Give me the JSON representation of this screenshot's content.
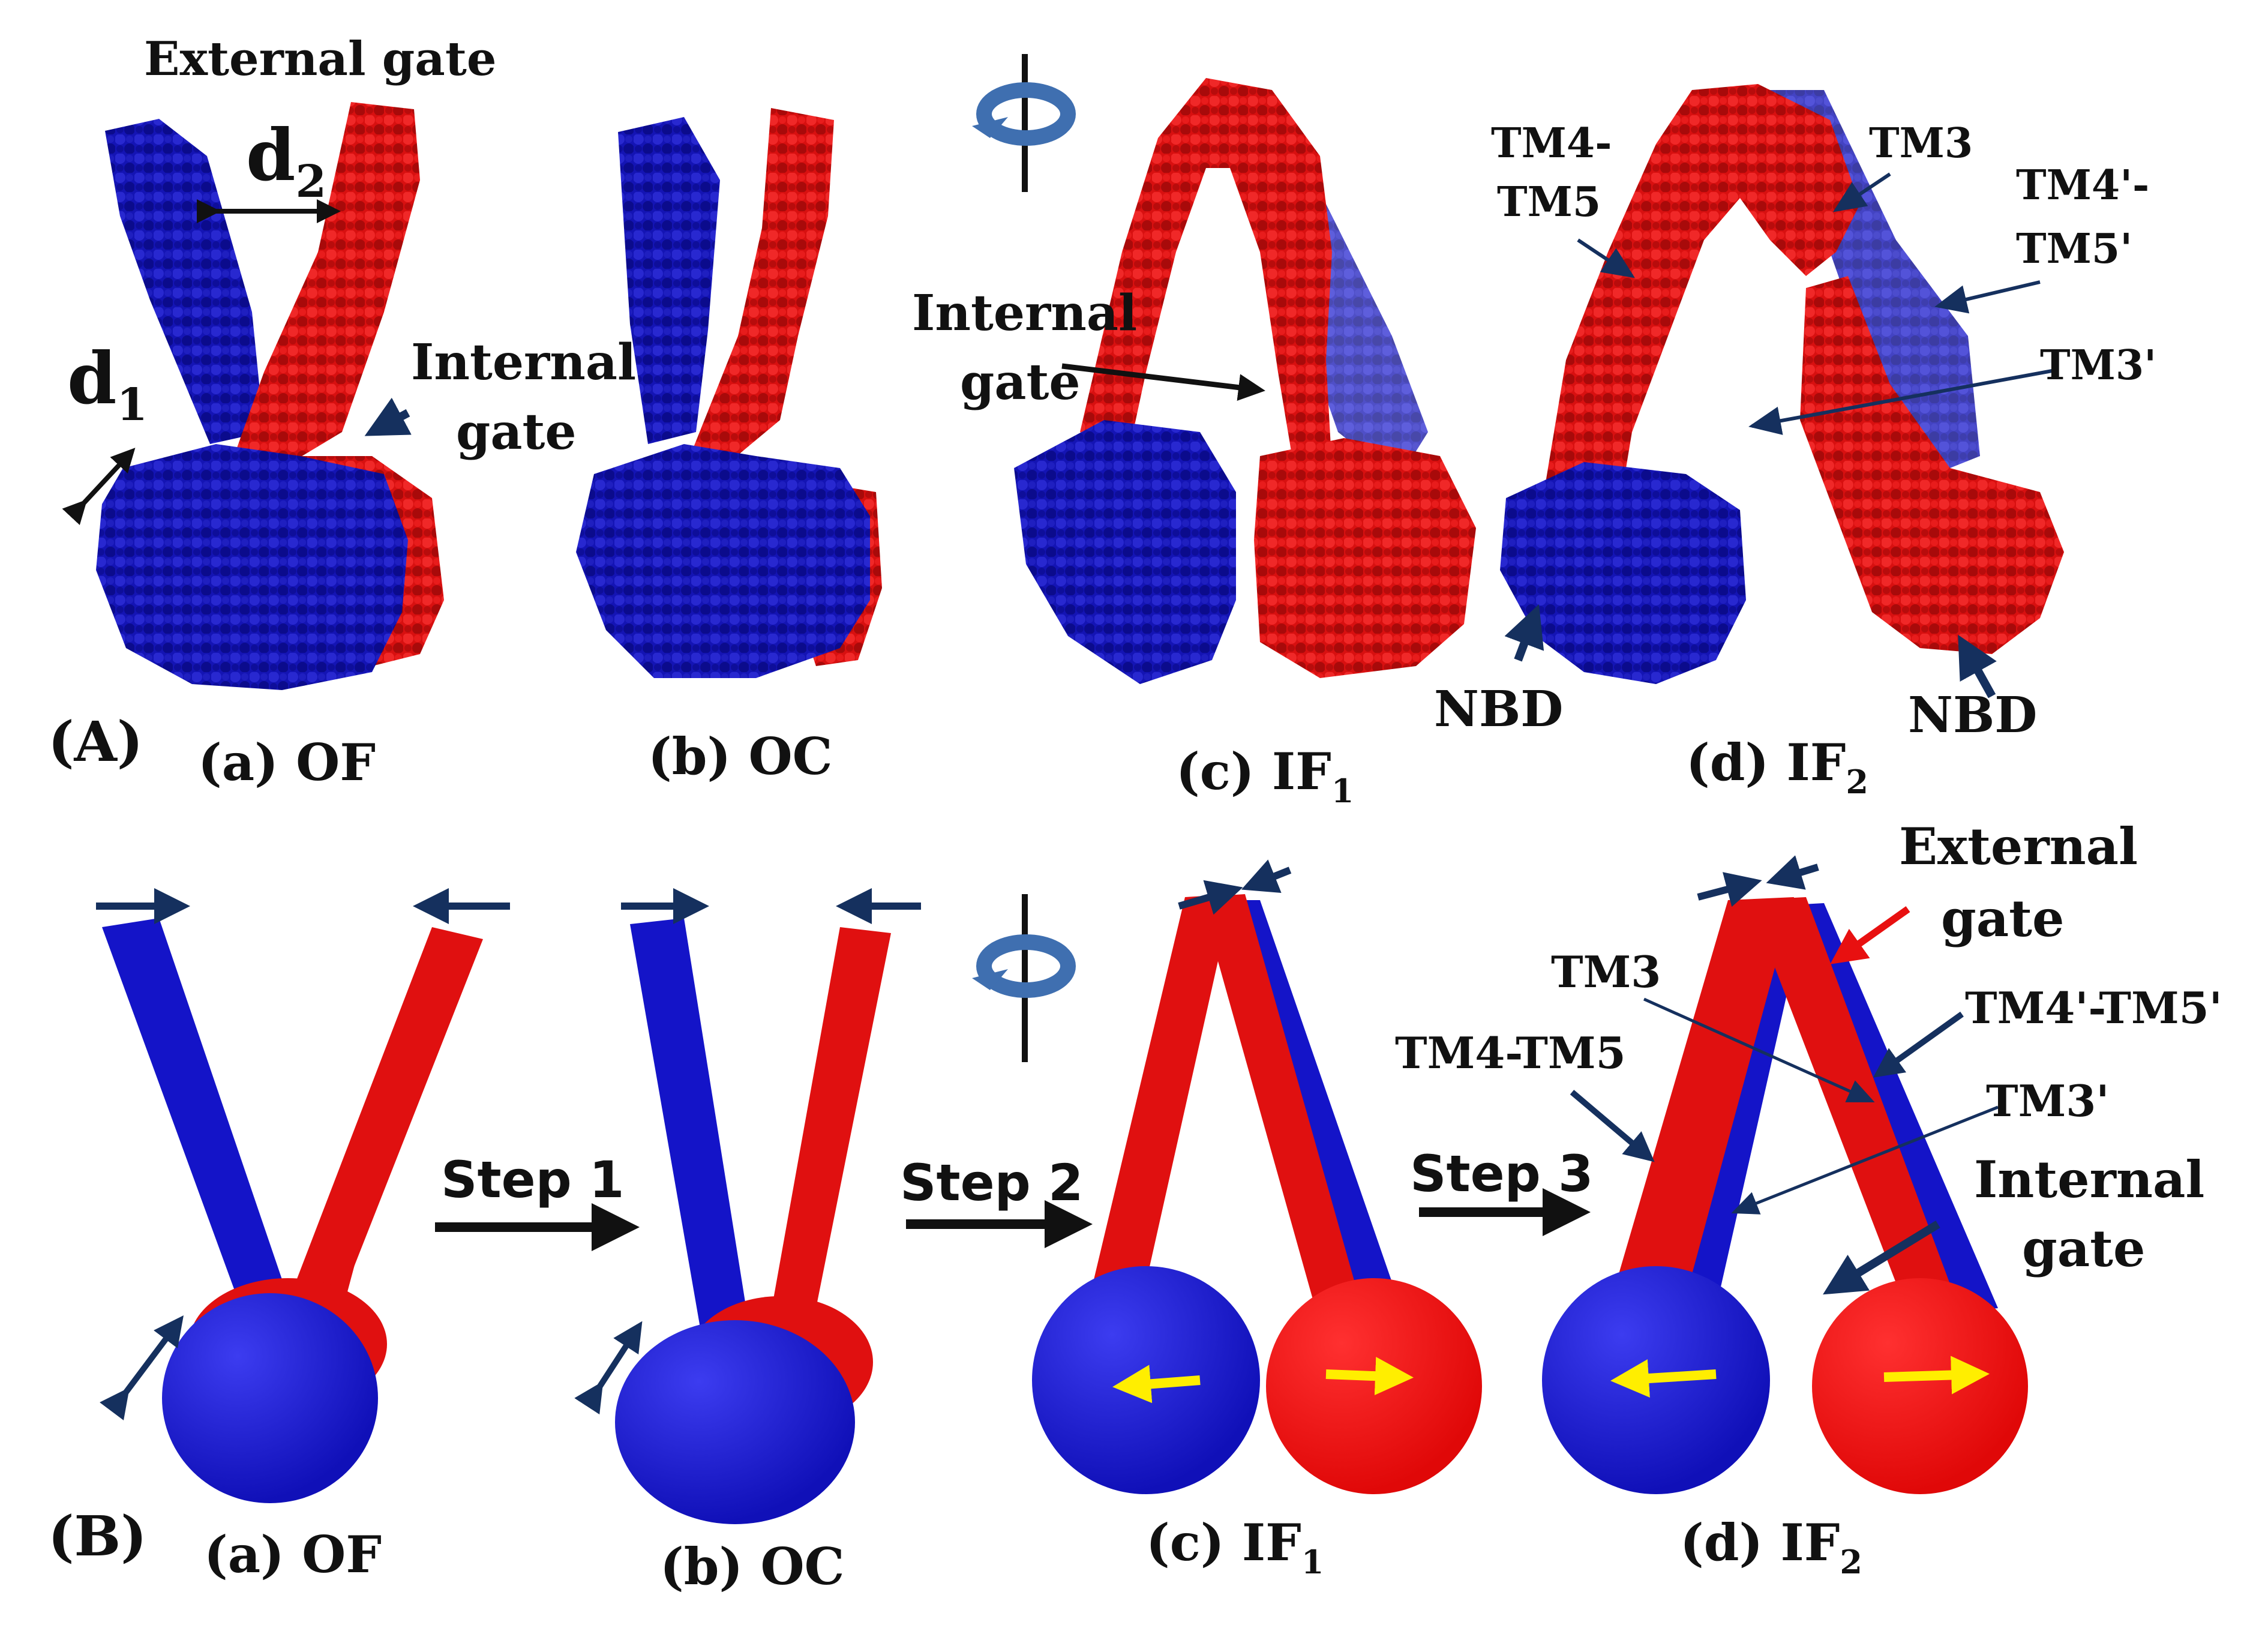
{
  "colors": {
    "blue": "#1414b4",
    "red": "#e01010",
    "dark_blue": "#15305e",
    "light_blue": "#3f6fb0",
    "yellow": "#ffee00",
    "black": "#111111"
  },
  "panel_a": {
    "panel_label": "(A)",
    "external_gate": "External gate",
    "d2": "d",
    "d2_sub": "2",
    "d1": "d",
    "d1_sub": "1",
    "internal_gate_line1": "Internal",
    "internal_gate_line2": "gate",
    "c_internal_line1": "Internal",
    "c_internal_line2": "gate",
    "tm4_tm5_line1": "TM4-",
    "tm4_tm5_line2": "TM5",
    "tm3": "TM3",
    "tm4p_tm5p_line1": "TM4'-",
    "tm4p_tm5p_line2": "TM5'",
    "tm3p": "TM3'",
    "nbd_left": "NBD",
    "nbd_right": "NBD",
    "captions": {
      "a": "(a) OF",
      "b": "(b) OC",
      "c": "(c) IF",
      "c_sub": "1",
      "d": "(d) IF",
      "d_sub": "2"
    }
  },
  "panel_b": {
    "panel_label": "(B)",
    "step1": "Step 1",
    "step2": "Step 2",
    "step3": "Step 3",
    "external_gate_line1": "External",
    "external_gate_line2": "gate",
    "tm3": "TM3",
    "tm4_tm5": "TM4-TM5",
    "tm4p_tm5p": "TM4'-TM5'",
    "tm3p": "TM3'",
    "internal_gate_line1": "Internal",
    "internal_gate_line2": "gate",
    "captions": {
      "a": "(a) OF",
      "b": "(b) OC",
      "c": "(c) IF",
      "c_sub": "1",
      "d": "(d) IF",
      "d_sub": "2"
    }
  }
}
